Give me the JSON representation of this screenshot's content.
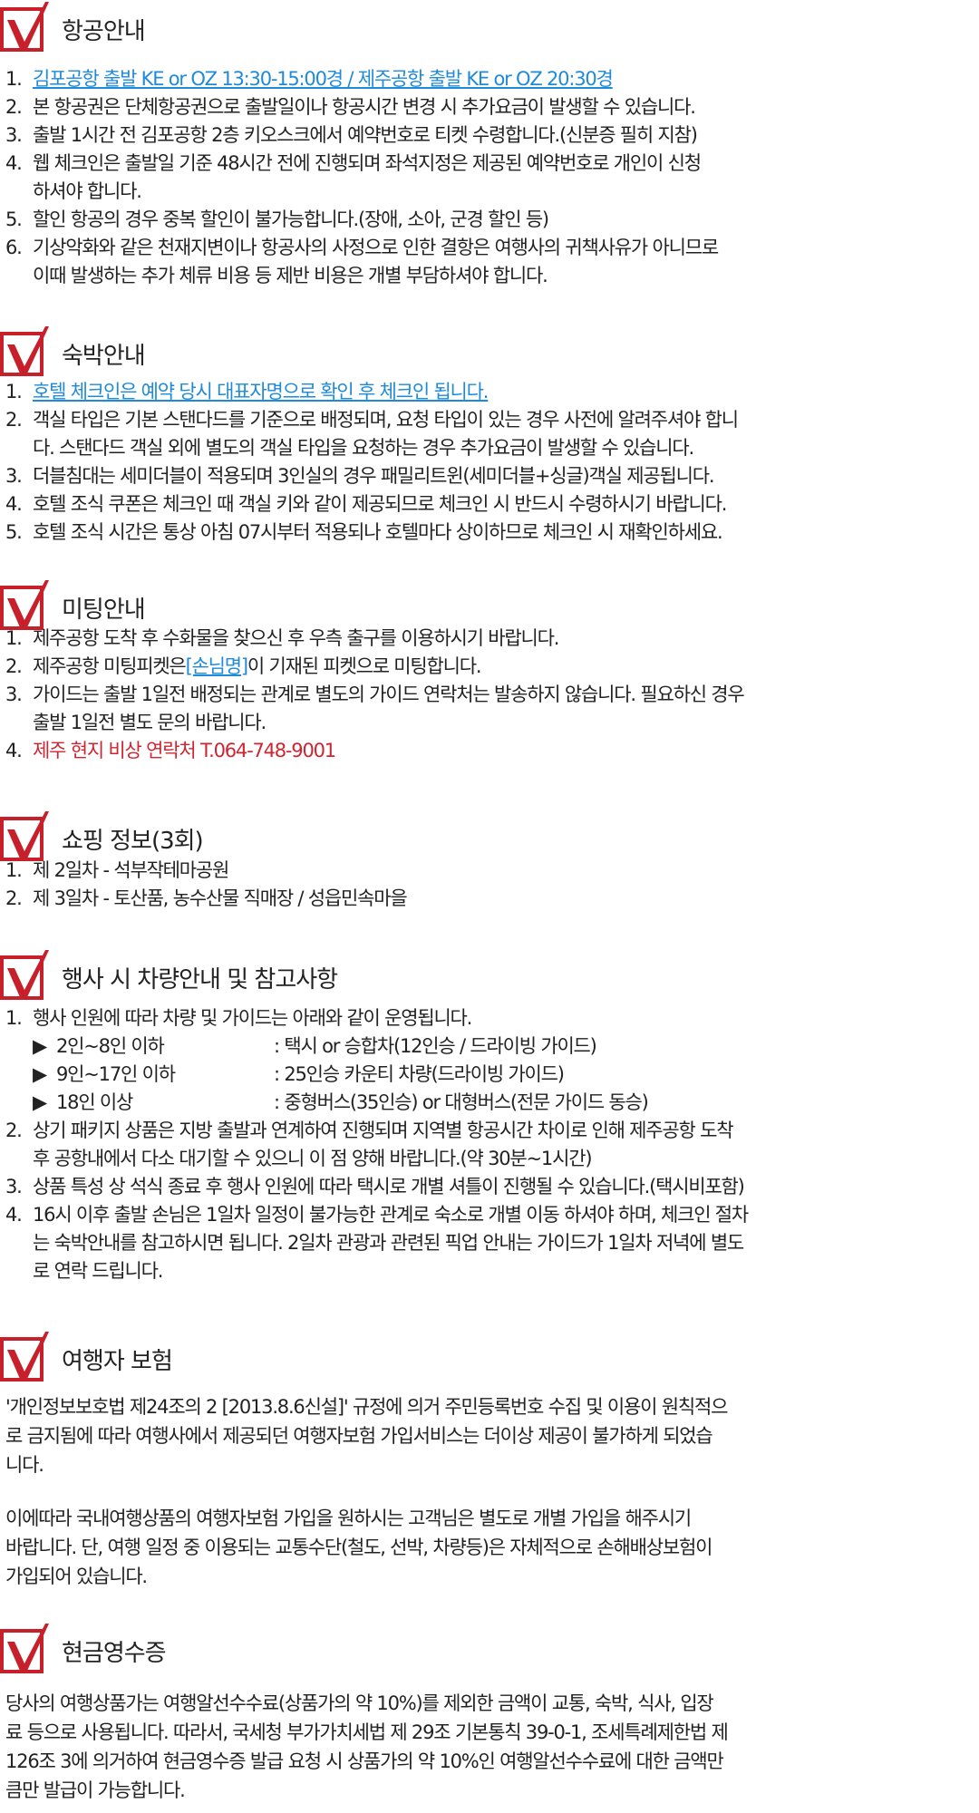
{
  "colors": {
    "accent_red": "#d02530",
    "link_blue": "#1f8ad8"
  },
  "icon": "red-checkbox-icon",
  "flight": {
    "title": "항공안내",
    "items": [
      {
        "num": "1.",
        "lines": [
          "김포공항 출발 KE or OZ 13:30-15:00경 / 제주공항 출발 KE or OZ 20:30경"
        ],
        "style": "link"
      },
      {
        "num": "2.",
        "lines": [
          "본 항공권은 단체항공권으로 출발일이나 항공시간 변경 시 추가요금이 발생할 수 있습니다."
        ]
      },
      {
        "num": "3.",
        "lines": [
          "출발 1시간 전 김포공항 2층 키오스크에서 예약번호로 티켓 수령합니다.(신분증 필히 지참)"
        ]
      },
      {
        "num": "4.",
        "lines": [
          "웹 체크인은 출발일 기준 48시간 전에 진행되며 좌석지정은 제공된 예약번호로 개인이 신청",
          "하셔야 합니다."
        ]
      },
      {
        "num": "5.",
        "lines": [
          "할인 항공의 경우 중복 할인이 불가능합니다.(장애, 소아, 군경 할인 등)"
        ]
      },
      {
        "num": "6.",
        "lines": [
          "기상악화와 같은 천재지변이나 항공사의 사정으로 인한 결항은 여행사의 귀책사유가 아니므로",
          "이때 발생하는 추가 체류 비용 등 제반 비용은 개별 부담하셔야 합니다."
        ]
      }
    ]
  },
  "hotel": {
    "title": "숙박안내",
    "items": [
      {
        "num": "1.",
        "lines": [
          "호텔 체크인은 예약 당시 대표자명으로 확인 후 체크인 됩니다."
        ],
        "style": "link"
      },
      {
        "num": "2.",
        "lines": [
          "객실 타입은 기본 스탠다드를 기준으로 배정되며, 요청 타입이 있는 경우 사전에 알려주셔야 합니",
          "다. 스탠다드 객실 외에 별도의 객실 타입을 요청하는 경우 추가요금이 발생할 수 있습니다."
        ]
      },
      {
        "num": "3.",
        "lines": [
          "더블침대는 세미더블이 적용되며 3인실의 경우 패밀리트윈(세미더블+싱글)객실 제공됩니다."
        ]
      },
      {
        "num": "4.",
        "lines": [
          "호텔 조식 쿠폰은 체크인 때 객실 키와 같이 제공되므로 체크인 시 반드시 수령하시기 바랍니다."
        ]
      },
      {
        "num": "5.",
        "lines": [
          "호텔 조식 시간은 통상 아침 07시부터 적용되나 호텔마다 상이하므로 체크인 시 재확인하세요."
        ]
      }
    ]
  },
  "meeting": {
    "title": "미팅안내",
    "item1": {
      "num": "1.",
      "text": "제주공항 도착 후 수화물을 찾으신 후 우측 출구를 이용하시기 바랍니다."
    },
    "item2": {
      "num": "2.",
      "pre": "제주공항 미팅피켓은 ",
      "link": "[손님명]",
      "post": "이 기재된 피켓으로 미팅합니다."
    },
    "item3": {
      "num": "3.",
      "line1": "가이드는 출발 1일전 배정되는 관계로 별도의 가이드 연락처는 발송하지 않습니다. 필요하신 경우",
      "line2": "출발 1일전 별도 문의 바랍니다."
    },
    "item4": {
      "num": "4.",
      "text": "제주 현지 비상 연락처 T.064-748-9001"
    }
  },
  "shopping": {
    "title": "쇼핑 정보(3회)",
    "items": [
      {
        "num": "1.",
        "lines": [
          "제 2일차 - 석부작테마공원"
        ]
      },
      {
        "num": "2.",
        "lines": [
          "제 3일차 - 토산품, 농수산물 직매장 / 성읍민속마을"
        ]
      }
    ]
  },
  "vehicle": {
    "title": "행사 시 차량안내 및 참고사항",
    "item1": {
      "num": "1.",
      "text": "행사 인원에 따라 차량 및 가이드는 아래와 같이 운영됩니다."
    },
    "sub": [
      {
        "arrow": "▶",
        "k": "2인~8인 이하",
        "v": ": 택시 or 승합차(12인승 / 드라이빙 가이드)"
      },
      {
        "arrow": "▶",
        "k": "9인~17인 이하",
        "v": ": 25인승 카운티 차량(드라이빙 가이드)"
      },
      {
        "arrow": "▶",
        "k": "18인 이상",
        "v": ": 중형버스(35인승) or 대형버스(전문 가이드 동승)"
      }
    ],
    "items": [
      {
        "num": "2.",
        "lines": [
          "상기 패키지 상품은 지방 출발과 연계하여 진행되며 지역별 항공시간 차이로 인해 제주공항 도착",
          "후 공항내에서 다소 대기할 수 있으니 이 점 양해 바랍니다.(약 30분~1시간)"
        ]
      },
      {
        "num": "3.",
        "lines": [
          "상품 특성 상 석식 종료 후 행사 인원에 따라 택시로 개별 셔틀이 진행될 수 있습니다.(택시비포함)"
        ]
      },
      {
        "num": "4.",
        "lines": [
          "16시 이후 출발 손님은 1일차 일정이 불가능한 관계로 숙소로 개별 이동 하셔야 하며, 체크인 절차",
          "는 숙박안내를 참고하시면 됩니다. 2일차 관광과 관련된 픽업 안내는 가이드가 1일차 저녁에 별도",
          "로 연락 드립니다."
        ]
      }
    ]
  },
  "insurance": {
    "title": "여행자 보험",
    "p1": [
      "'개인정보보호법 제24조의 2 [2013.8.6신설]' 규정에 의거 주민등록번호 수집 및 이용이 원칙적으",
      "로 금지됨에 따라 여행사에서 제공되던 여행자보험 가입서비스는 더이상 제공이 불가하게 되었습",
      "니다."
    ],
    "p2": [
      "이에따라 국내여행상품의 여행자보험 가입을 원하시는 고객님은 별도로 개별 가입을 해주시기",
      "바랍니다. 단, 여행 일정 중 이용되는 교통수단(철도, 선박, 차량등)은 자체적으로 손해배상보험이",
      "가입되어 있습니다."
    ]
  },
  "receipt": {
    "title": "현금영수증",
    "p": [
      "당사의 여행상품가는 여행알선수수료(상품가의 약 10%)를 제외한 금액이 교통, 숙박, 식사, 입장",
      "료 등으로 사용됩니다. 따라서, 국세청 부가가치세법 제 29조 기본통칙 39-0-1, 조세특례제한법 제",
      "126조 3에 의거하여 현금영수증 발급 요청 시 상품가의 약 10%인 여행알선수수료에 대한 금액만",
      "큼만 발급이 가능합니다."
    ]
  }
}
